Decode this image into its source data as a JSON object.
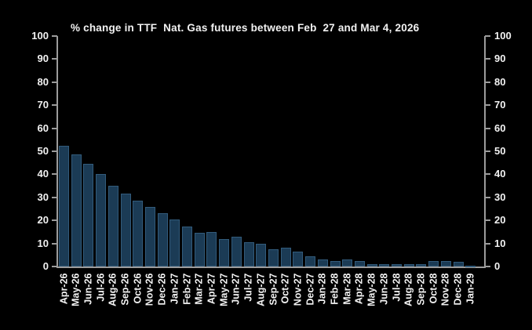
{
  "chart_data": {
    "type": "bar",
    "title": "% change in TTF  Nat. Gas futures between Feb  27 and Mar 4, 2026",
    "categories": [
      "Apr-26",
      "May-26",
      "Jun-26",
      "Jul-26",
      "Aug-26",
      "Sep-26",
      "Oct-26",
      "Nov-26",
      "Dec-26",
      "Jan-27",
      "Feb-27",
      "Mar-27",
      "Apr-27",
      "May-27",
      "Jun-27",
      "Jul-27",
      "Aug-27",
      "Sep-27",
      "Oct-27",
      "Nov-27",
      "Dec-27",
      "Jan-28",
      "Feb-28",
      "Mar-28",
      "Apr-28",
      "May-28",
      "Jun-28",
      "Jul-28",
      "Aug-28",
      "Sep-28",
      "Oct-28",
      "Nov-28",
      "Dec-28",
      "Jan-29"
    ],
    "values": [
      52.5,
      48.5,
      44.5,
      40,
      35,
      31.5,
      28.5,
      26,
      23,
      20.5,
      17.5,
      14.5,
      15,
      12,
      13,
      10.5,
      10,
      7.5,
      8,
      6.5,
      4.5,
      3,
      2.5,
      3,
      2.5,
      1,
      1,
      1,
      1,
      1,
      2.5,
      2.5,
      2,
      0.2
    ],
    "xlabel": "",
    "ylabel": "",
    "ylim": [
      0,
      100
    ],
    "ytick_step": 10,
    "grid": false,
    "legend": "none",
    "y_axis_sides": "left and right",
    "bar_color": "#1b3b55",
    "bar_edge_color": "#4a7ea6",
    "background_color": "#000000",
    "text_color": "#f2f2f2",
    "axis_color": "#9c9c9c"
  }
}
